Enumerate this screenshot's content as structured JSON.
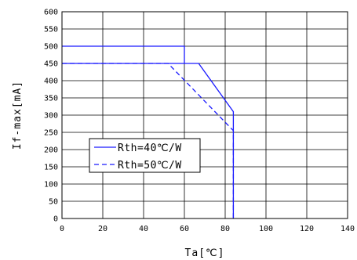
{
  "chart_data": {
    "type": "line",
    "xlabel": "Ta[℃]",
    "ylabel": "If-max[mA]",
    "xlim": [
      0,
      140
    ],
    "ylim": [
      0,
      600
    ],
    "x_ticks": [
      0,
      20,
      40,
      60,
      80,
      100,
      120,
      140
    ],
    "y_ticks": [
      0,
      50,
      100,
      150,
      200,
      250,
      300,
      350,
      400,
      450,
      500,
      550,
      600
    ],
    "grid": true,
    "legend_position": "left",
    "series": [
      {
        "name": "Rth=40℃/W",
        "style": "solid",
        "color": "#1a1aff",
        "points": [
          [
            0,
            450
          ],
          [
            67,
            450
          ],
          [
            84,
            310
          ],
          [
            84,
            0
          ]
        ]
      },
      {
        "name": "Rth=50℃/W",
        "style": "dashed",
        "color": "#1a1aff",
        "points": [
          [
            0,
            450
          ],
          [
            52,
            450
          ],
          [
            84,
            255
          ],
          [
            84,
            0
          ]
        ]
      }
    ],
    "reference_lines": [
      {
        "style": "solid",
        "color": "#1a1aff",
        "points": [
          [
            0,
            500
          ],
          [
            60,
            500
          ],
          [
            60,
            450
          ]
        ]
      }
    ]
  }
}
